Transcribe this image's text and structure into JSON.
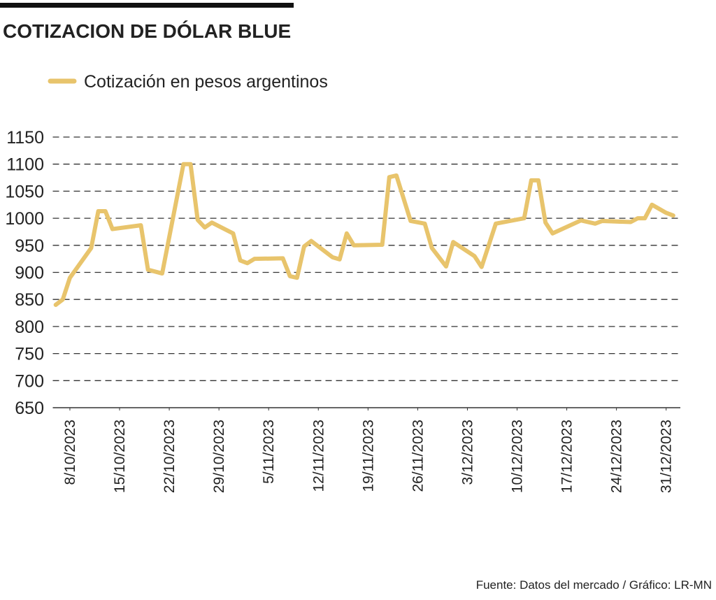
{
  "chart_data": {
    "type": "line",
    "title": "COTIZACION DE DÓLAR BLUE",
    "source": "Fuente: Datos del mercado / Gráfico: LR-MN",
    "x": [
      "2023-10-06",
      "2023-10-07",
      "2023-10-08",
      "2023-10-11",
      "2023-10-12",
      "2023-10-13",
      "2023-10-14",
      "2023-10-18",
      "2023-10-19",
      "2023-10-21",
      "2023-10-24",
      "2023-10-25",
      "2023-10-26",
      "2023-10-27",
      "2023-10-28",
      "2023-10-31",
      "2023-11-01",
      "2023-11-02",
      "2023-11-03",
      "2023-11-07",
      "2023-11-08",
      "2023-11-09",
      "2023-11-10",
      "2023-11-11",
      "2023-11-14",
      "2023-11-15",
      "2023-11-16",
      "2023-11-17",
      "2023-11-21",
      "2023-11-22",
      "2023-11-23",
      "2023-11-25",
      "2023-11-27",
      "2023-11-28",
      "2023-11-30",
      "2023-12-01",
      "2023-12-04",
      "2023-12-05",
      "2023-12-07",
      "2023-12-11",
      "2023-12-12",
      "2023-12-13",
      "2023-12-14",
      "2023-12-15",
      "2023-12-19",
      "2023-12-21",
      "2023-12-22",
      "2023-12-26",
      "2023-12-27",
      "2023-12-28",
      "2023-12-29",
      "2023-12-31",
      "2024-01-01"
    ],
    "series": [
      {
        "name": "Cotización en pesos argentinos",
        "color": "#e8c46c",
        "values": [
          840,
          850,
          890,
          945,
          1013,
          1013,
          980,
          987,
          905,
          898,
          1100,
          1100,
          997,
          983,
          992,
          972,
          922,
          917,
          925,
          926,
          893,
          890,
          948,
          958,
          928,
          924,
          972,
          950,
          951,
          1076,
          1079,
          995,
          990,
          945,
          911,
          956,
          930,
          910,
          990,
          1000,
          1070,
          1070,
          992,
          972,
          996,
          990,
          995,
          993,
          1000,
          1000,
          1025,
          1010,
          1005
        ]
      }
    ],
    "xlim": [
      "2023-10-05",
      "2024-01-02"
    ],
    "xticks": [
      {
        "value": "2023-10-08",
        "label": "8/10/2023"
      },
      {
        "value": "2023-10-15",
        "label": "15/10/2023"
      },
      {
        "value": "2023-10-22",
        "label": "22/10/2023"
      },
      {
        "value": "2023-10-29",
        "label": "29/10/2023"
      },
      {
        "value": "2023-11-05",
        "label": "5/11/2023"
      },
      {
        "value": "2023-11-12",
        "label": "12/11/2023"
      },
      {
        "value": "2023-11-19",
        "label": "19/11/2023"
      },
      {
        "value": "2023-11-26",
        "label": "26/11/2023"
      },
      {
        "value": "2023-12-03",
        "label": "3/12/2023"
      },
      {
        "value": "2023-12-10",
        "label": "10/12/2023"
      },
      {
        "value": "2023-12-17",
        "label": "17/12/2023"
      },
      {
        "value": "2023-12-24",
        "label": "24/12/2023"
      },
      {
        "value": "2023-12-31",
        "label": "31/12/2023"
      }
    ],
    "ylim": [
      650,
      1150
    ],
    "yticks": [
      650,
      700,
      750,
      800,
      850,
      900,
      950,
      1000,
      1050,
      1100,
      1150
    ],
    "grid": true
  }
}
